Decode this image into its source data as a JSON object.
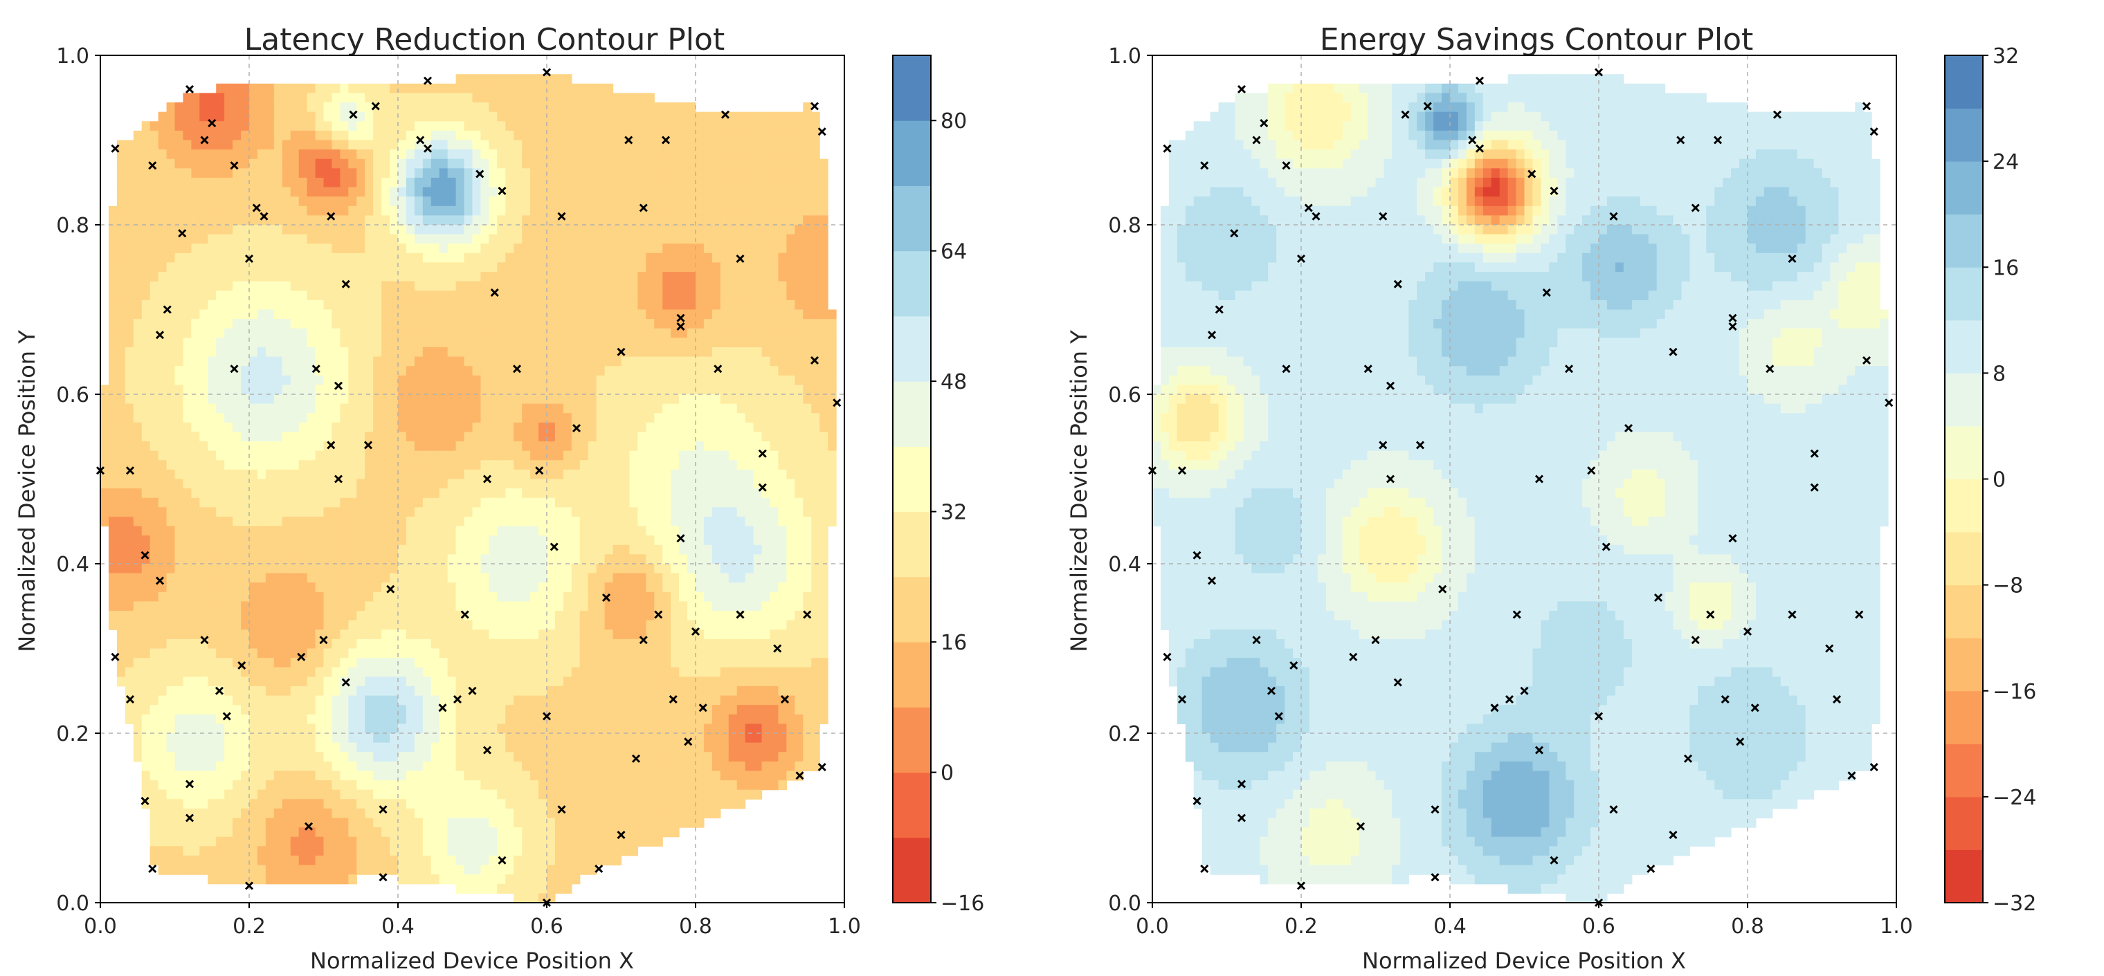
{
  "chart_data": [
    {
      "type": "contour",
      "title": "Latency Reduction Contour Plot",
      "xlabel": "Normalized Device Position X",
      "ylabel": "Normalized Device Position Y",
      "xlim": [
        0.0,
        1.0
      ],
      "ylim": [
        0.0,
        1.0
      ],
      "xticks": [
        "0.0",
        "0.2",
        "0.4",
        "0.6",
        "0.8",
        "1.0"
      ],
      "yticks": [
        "0.0",
        "0.2",
        "0.4",
        "0.6",
        "0.8",
        "1.0"
      ],
      "grid": true,
      "colormap": "RdYlBu",
      "colorbar": {
        "range": [
          -16,
          88
        ],
        "levels": [
          -16,
          -8,
          0,
          8,
          16,
          24,
          32,
          40,
          48,
          56,
          64,
          72,
          80,
          88
        ],
        "tick_labels": [
          "−16",
          "0",
          "16",
          "32",
          "48",
          "64",
          "80"
        ]
      },
      "sample_points": [
        [
          0.0,
          0.51
        ],
        [
          0.02,
          0.29
        ],
        [
          0.02,
          0.89
        ],
        [
          0.04,
          0.24
        ],
        [
          0.04,
          0.51
        ],
        [
          0.06,
          0.12
        ],
        [
          0.06,
          0.41
        ],
        [
          0.07,
          0.87
        ],
        [
          0.07,
          0.04
        ],
        [
          0.08,
          0.38
        ],
        [
          0.08,
          0.67
        ],
        [
          0.09,
          0.7
        ],
        [
          0.11,
          0.79
        ],
        [
          0.12,
          0.1
        ],
        [
          0.12,
          0.14
        ],
        [
          0.12,
          0.96
        ],
        [
          0.14,
          0.31
        ],
        [
          0.14,
          0.9
        ],
        [
          0.15,
          0.92
        ],
        [
          0.16,
          0.25
        ],
        [
          0.17,
          0.22
        ],
        [
          0.18,
          0.63
        ],
        [
          0.18,
          0.87
        ],
        [
          0.19,
          0.28
        ],
        [
          0.2,
          0.02
        ],
        [
          0.2,
          0.76
        ],
        [
          0.21,
          0.82
        ],
        [
          0.22,
          0.81
        ],
        [
          0.27,
          0.29
        ],
        [
          0.28,
          0.09
        ],
        [
          0.29,
          0.63
        ],
        [
          0.3,
          0.31
        ],
        [
          0.31,
          0.54
        ],
        [
          0.31,
          0.81
        ],
        [
          0.32,
          0.5
        ],
        [
          0.32,
          0.61
        ],
        [
          0.33,
          0.26
        ],
        [
          0.33,
          0.73
        ],
        [
          0.34,
          0.93
        ],
        [
          0.36,
          0.54
        ],
        [
          0.37,
          0.94
        ],
        [
          0.38,
          0.11
        ],
        [
          0.38,
          0.03
        ],
        [
          0.39,
          0.37
        ],
        [
          0.43,
          0.9
        ],
        [
          0.44,
          0.97
        ],
        [
          0.44,
          0.89
        ],
        [
          0.46,
          0.23
        ],
        [
          0.48,
          0.24
        ],
        [
          0.49,
          0.34
        ],
        [
          0.5,
          0.25
        ],
        [
          0.51,
          0.86
        ],
        [
          0.52,
          0.18
        ],
        [
          0.52,
          0.5
        ],
        [
          0.53,
          0.72
        ],
        [
          0.54,
          0.05
        ],
        [
          0.54,
          0.84
        ],
        [
          0.56,
          0.63
        ],
        [
          0.59,
          0.51
        ],
        [
          0.6,
          0.0
        ],
        [
          0.6,
          0.98
        ],
        [
          0.6,
          0.22
        ],
        [
          0.61,
          0.42
        ],
        [
          0.62,
          0.81
        ],
        [
          0.62,
          0.11
        ],
        [
          0.64,
          0.56
        ],
        [
          0.67,
          0.04
        ],
        [
          0.68,
          0.36
        ],
        [
          0.7,
          0.65
        ],
        [
          0.7,
          0.08
        ],
        [
          0.71,
          0.9
        ],
        [
          0.72,
          0.17
        ],
        [
          0.73,
          0.31
        ],
        [
          0.73,
          0.82
        ],
        [
          0.75,
          0.34
        ],
        [
          0.76,
          0.9
        ],
        [
          0.77,
          0.24
        ],
        [
          0.78,
          0.69
        ],
        [
          0.78,
          0.68
        ],
        [
          0.78,
          0.43
        ],
        [
          0.79,
          0.19
        ],
        [
          0.8,
          0.32
        ],
        [
          0.81,
          0.23
        ],
        [
          0.83,
          0.63
        ],
        [
          0.84,
          0.93
        ],
        [
          0.86,
          0.34
        ],
        [
          0.86,
          0.76
        ],
        [
          0.89,
          0.53
        ],
        [
          0.89,
          0.49
        ],
        [
          0.91,
          0.3
        ],
        [
          0.92,
          0.24
        ],
        [
          0.94,
          0.15
        ],
        [
          0.95,
          0.34
        ],
        [
          0.96,
          0.94
        ],
        [
          0.96,
          0.64
        ],
        [
          0.97,
          0.91
        ],
        [
          0.97,
          0.16
        ],
        [
          0.99,
          0.59
        ]
      ],
      "field_bumps": [
        {
          "x": 0.46,
          "y": 0.84,
          "value": 78,
          "spread": 0.045
        },
        {
          "x": 0.38,
          "y": 0.22,
          "value": 60,
          "spread": 0.06
        },
        {
          "x": 0.22,
          "y": 0.62,
          "value": 50,
          "spread": 0.08
        },
        {
          "x": 0.56,
          "y": 0.4,
          "value": 44,
          "spread": 0.07
        },
        {
          "x": 0.86,
          "y": 0.4,
          "value": 46,
          "spread": 0.07
        },
        {
          "x": 0.13,
          "y": 0.19,
          "value": 44,
          "spread": 0.06
        },
        {
          "x": 0.5,
          "y": 0.07,
          "value": 44,
          "spread": 0.05
        },
        {
          "x": 0.33,
          "y": 0.92,
          "value": 50,
          "spread": 0.03
        },
        {
          "x": 0.8,
          "y": 0.52,
          "value": 38,
          "spread": 0.08
        },
        {
          "x": 0.31,
          "y": 0.87,
          "value": -8,
          "spread": 0.035
        },
        {
          "x": 0.15,
          "y": 0.94,
          "value": -2,
          "spread": 0.05
        },
        {
          "x": 0.88,
          "y": 0.2,
          "value": -2,
          "spread": 0.04
        },
        {
          "x": 0.71,
          "y": 0.36,
          "value": 4,
          "spread": 0.04
        },
        {
          "x": 0.25,
          "y": 0.33,
          "value": 8,
          "spread": 0.05
        },
        {
          "x": 0.28,
          "y": 0.07,
          "value": 6,
          "spread": 0.05
        },
        {
          "x": 0.78,
          "y": 0.72,
          "value": 4,
          "spread": 0.04
        },
        {
          "x": 0.03,
          "y": 0.42,
          "value": 4,
          "spread": 0.05
        },
        {
          "x": 0.6,
          "y": 0.55,
          "value": 4,
          "spread": 0.03
        },
        {
          "x": 0.45,
          "y": 0.59,
          "value": 8,
          "spread": 0.05
        },
        {
          "x": 0.98,
          "y": 0.75,
          "value": 8,
          "spread": 0.05
        }
      ],
      "field_base": 22
    },
    {
      "type": "contour",
      "title": "Energy Savings Contour Plot",
      "xlabel": "Normalized Device Position X",
      "ylabel": "Normalized Device Position Y",
      "xlim": [
        0.0,
        1.0
      ],
      "ylim": [
        0.0,
        1.0
      ],
      "xticks": [
        "0.0",
        "0.2",
        "0.4",
        "0.6",
        "0.8",
        "1.0"
      ],
      "yticks": [
        "0.0",
        "0.2",
        "0.4",
        "0.6",
        "0.8",
        "1.0"
      ],
      "grid": true,
      "colormap": "RdYlBu",
      "colorbar": {
        "range": [
          -32,
          32
        ],
        "levels": [
          -32,
          -28,
          -24,
          -20,
          -16,
          -12,
          -8,
          -4,
          0,
          4,
          8,
          12,
          16,
          20,
          24,
          28,
          32
        ],
        "tick_labels": [
          "−32",
          "−24",
          "−16",
          "−8",
          "0",
          "8",
          "16",
          "24",
          "32"
        ]
      },
      "sample_points": [
        [
          0.0,
          0.51
        ],
        [
          0.02,
          0.29
        ],
        [
          0.02,
          0.89
        ],
        [
          0.04,
          0.24
        ],
        [
          0.04,
          0.51
        ],
        [
          0.06,
          0.12
        ],
        [
          0.06,
          0.41
        ],
        [
          0.07,
          0.87
        ],
        [
          0.07,
          0.04
        ],
        [
          0.08,
          0.38
        ],
        [
          0.08,
          0.67
        ],
        [
          0.09,
          0.7
        ],
        [
          0.11,
          0.79
        ],
        [
          0.12,
          0.1
        ],
        [
          0.12,
          0.14
        ],
        [
          0.12,
          0.96
        ],
        [
          0.14,
          0.31
        ],
        [
          0.14,
          0.9
        ],
        [
          0.15,
          0.92
        ],
        [
          0.16,
          0.25
        ],
        [
          0.17,
          0.22
        ],
        [
          0.18,
          0.63
        ],
        [
          0.18,
          0.87
        ],
        [
          0.19,
          0.28
        ],
        [
          0.2,
          0.02
        ],
        [
          0.2,
          0.76
        ],
        [
          0.21,
          0.82
        ],
        [
          0.22,
          0.81
        ],
        [
          0.27,
          0.29
        ],
        [
          0.28,
          0.09
        ],
        [
          0.29,
          0.63
        ],
        [
          0.3,
          0.31
        ],
        [
          0.31,
          0.54
        ],
        [
          0.31,
          0.81
        ],
        [
          0.32,
          0.5
        ],
        [
          0.32,
          0.61
        ],
        [
          0.33,
          0.26
        ],
        [
          0.33,
          0.73
        ],
        [
          0.34,
          0.93
        ],
        [
          0.36,
          0.54
        ],
        [
          0.37,
          0.94
        ],
        [
          0.38,
          0.11
        ],
        [
          0.38,
          0.03
        ],
        [
          0.39,
          0.37
        ],
        [
          0.43,
          0.9
        ],
        [
          0.44,
          0.97
        ],
        [
          0.44,
          0.89
        ],
        [
          0.46,
          0.23
        ],
        [
          0.48,
          0.24
        ],
        [
          0.49,
          0.34
        ],
        [
          0.5,
          0.25
        ],
        [
          0.51,
          0.86
        ],
        [
          0.52,
          0.18
        ],
        [
          0.52,
          0.5
        ],
        [
          0.53,
          0.72
        ],
        [
          0.54,
          0.05
        ],
        [
          0.54,
          0.84
        ],
        [
          0.56,
          0.63
        ],
        [
          0.59,
          0.51
        ],
        [
          0.6,
          0.0
        ],
        [
          0.6,
          0.98
        ],
        [
          0.6,
          0.22
        ],
        [
          0.61,
          0.42
        ],
        [
          0.62,
          0.81
        ],
        [
          0.62,
          0.11
        ],
        [
          0.64,
          0.56
        ],
        [
          0.67,
          0.04
        ],
        [
          0.68,
          0.36
        ],
        [
          0.7,
          0.65
        ],
        [
          0.7,
          0.08
        ],
        [
          0.71,
          0.9
        ],
        [
          0.72,
          0.17
        ],
        [
          0.73,
          0.31
        ],
        [
          0.73,
          0.82
        ],
        [
          0.75,
          0.34
        ],
        [
          0.76,
          0.9
        ],
        [
          0.77,
          0.24
        ],
        [
          0.78,
          0.69
        ],
        [
          0.78,
          0.68
        ],
        [
          0.78,
          0.43
        ],
        [
          0.79,
          0.19
        ],
        [
          0.8,
          0.32
        ],
        [
          0.81,
          0.23
        ],
        [
          0.83,
          0.63
        ],
        [
          0.84,
          0.93
        ],
        [
          0.86,
          0.34
        ],
        [
          0.86,
          0.76
        ],
        [
          0.89,
          0.53
        ],
        [
          0.89,
          0.49
        ],
        [
          0.91,
          0.3
        ],
        [
          0.92,
          0.24
        ],
        [
          0.94,
          0.15
        ],
        [
          0.95,
          0.34
        ],
        [
          0.96,
          0.94
        ],
        [
          0.96,
          0.64
        ],
        [
          0.97,
          0.91
        ],
        [
          0.97,
          0.16
        ],
        [
          0.99,
          0.59
        ]
      ],
      "field_bumps": [
        {
          "x": 0.46,
          "y": 0.84,
          "value": -30,
          "spread": 0.04
        },
        {
          "x": 0.4,
          "y": 0.92,
          "value": 28,
          "spread": 0.03
        },
        {
          "x": 0.49,
          "y": 0.12,
          "value": 24,
          "spread": 0.06
        },
        {
          "x": 0.12,
          "y": 0.23,
          "value": 20,
          "spread": 0.06
        },
        {
          "x": 0.44,
          "y": 0.68,
          "value": 20,
          "spread": 0.06
        },
        {
          "x": 0.63,
          "y": 0.75,
          "value": 20,
          "spread": 0.05
        },
        {
          "x": 0.84,
          "y": 0.8,
          "value": 18,
          "spread": 0.06
        },
        {
          "x": 0.1,
          "y": 0.78,
          "value": 16,
          "spread": 0.05
        },
        {
          "x": 0.8,
          "y": 0.2,
          "value": 16,
          "spread": 0.06
        },
        {
          "x": 0.58,
          "y": 0.3,
          "value": 14,
          "spread": 0.06
        },
        {
          "x": 0.16,
          "y": 0.44,
          "value": 16,
          "spread": 0.04
        },
        {
          "x": 0.32,
          "y": 0.42,
          "value": -4,
          "spread": 0.05
        },
        {
          "x": 0.06,
          "y": 0.57,
          "value": -8,
          "spread": 0.04
        },
        {
          "x": 0.22,
          "y": 0.93,
          "value": -4,
          "spread": 0.05
        },
        {
          "x": 0.66,
          "y": 0.48,
          "value": 2,
          "spread": 0.04
        },
        {
          "x": 0.96,
          "y": 0.72,
          "value": 0,
          "spread": 0.04
        },
        {
          "x": 0.24,
          "y": 0.08,
          "value": 2,
          "spread": 0.05
        },
        {
          "x": 0.75,
          "y": 0.35,
          "value": 0,
          "spread": 0.03
        },
        {
          "x": 0.86,
          "y": 0.66,
          "value": 2,
          "spread": 0.04
        }
      ],
      "field_base": 9
    }
  ],
  "colors": {
    "cmap_stops": [
      "#d73027",
      "#f46d43",
      "#fdae61",
      "#fee090",
      "#ffffbf",
      "#e0f3f8",
      "#abd9e9",
      "#74add1",
      "#4575b4"
    ],
    "grid": "#b0b0b0",
    "axis": "#000000",
    "marker": "#000000"
  }
}
